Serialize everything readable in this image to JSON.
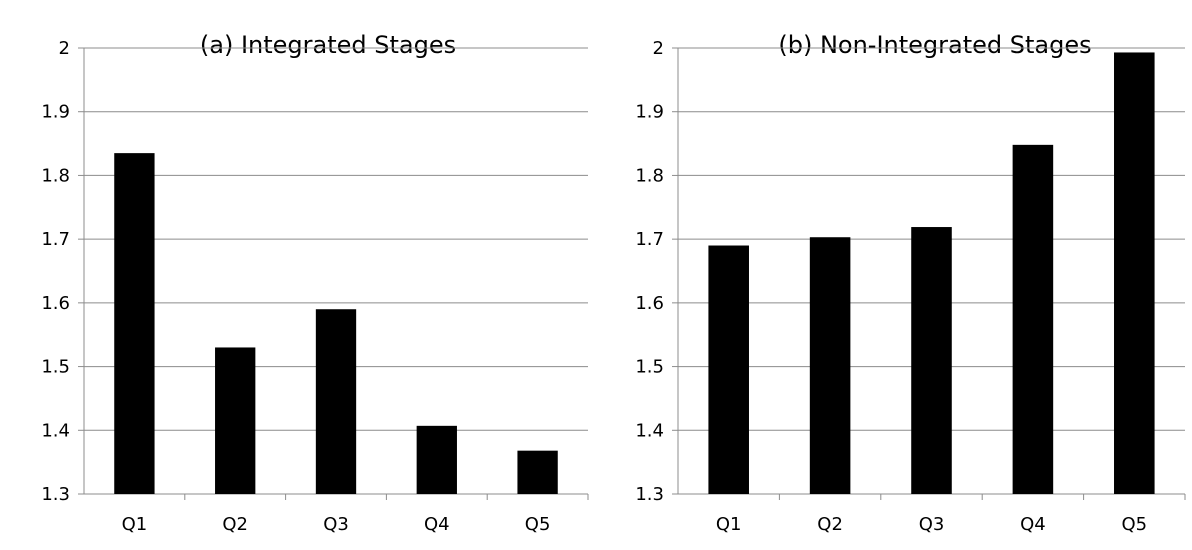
{
  "chart_data": [
    {
      "type": "bar",
      "title": "(a) Integrated Stages",
      "xlabel": "",
      "ylabel": "",
      "categories": [
        "Q1",
        "Q2",
        "Q3",
        "Q4",
        "Q5"
      ],
      "values": [
        1.835,
        1.53,
        1.59,
        1.407,
        1.368
      ],
      "ylim": [
        1.3,
        2.0
      ],
      "yticks": [
        "1.3",
        "1.4",
        "1.5",
        "1.6",
        "1.7",
        "1.8",
        "1.9",
        "2"
      ],
      "grid": true,
      "legend": "none",
      "bar_color": "#000000"
    },
    {
      "type": "bar",
      "title": "(b) Non-Integrated Stages",
      "xlabel": "",
      "ylabel": "",
      "categories": [
        "Q1",
        "Q2",
        "Q3",
        "Q4",
        "Q5"
      ],
      "values": [
        1.69,
        1.703,
        1.719,
        1.848,
        1.993
      ],
      "ylim": [
        1.3,
        2.0
      ],
      "yticks": [
        "1.3",
        "1.4",
        "1.5",
        "1.6",
        "1.7",
        "1.8",
        "1.9",
        "2"
      ],
      "grid": true,
      "legend": "none",
      "bar_color": "#000000"
    }
  ]
}
